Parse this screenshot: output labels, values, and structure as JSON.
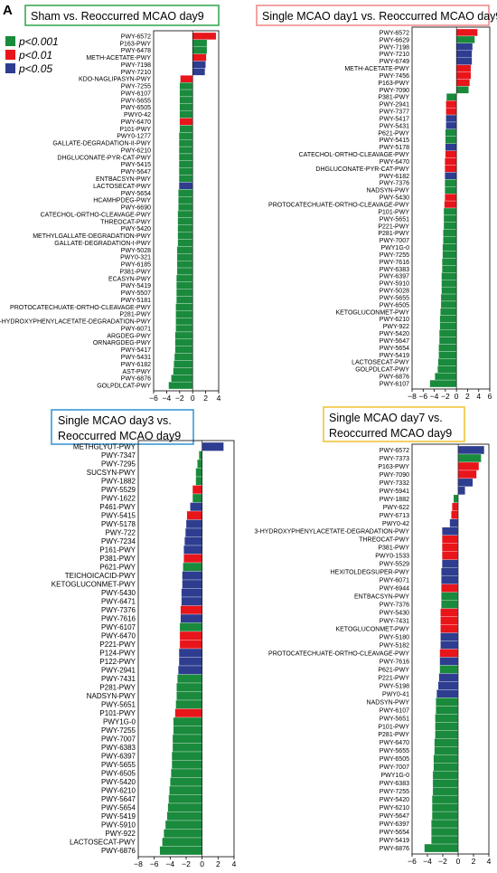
{
  "figure": {
    "panel_letter": "A",
    "legend": [
      {
        "label": "p<0.001",
        "color": "#1a8a3c"
      },
      {
        "label": "p<0.01",
        "color": "#e8151b"
      },
      {
        "label": "p<0.05",
        "color": "#2e3d8f"
      }
    ]
  },
  "chart_data": [
    {
      "type": "bar",
      "orientation": "horizontal",
      "title": "Sham vs. Reoccurred MCAO day9",
      "title_border_color": "#3aaa55",
      "xlim": [
        -6,
        4
      ],
      "xticks": [
        -6,
        -4,
        -2,
        0,
        2,
        4
      ],
      "categories": [
        "PWY-6572",
        "P163-PWY",
        "PWY-6478",
        "METH-ACETATE-PWY",
        "PWY-7198",
        "PWY-7210",
        "KDO-NAGLIPASYN-PWY",
        "PWY-7255",
        "PWY-6107",
        "PWY-5655",
        "PWY-6505",
        "PWY0-42",
        "PWY-6470",
        "P101-PWY",
        "PWY0-1277",
        "GALLATE-DEGRADATION-II-PWY",
        "PWY-6210",
        "DHGLUCONATE-PYR-CAT-PWY",
        "PWY-5415",
        "PWY-5647",
        "ENTBACSYN-PWY",
        "LACTOSECAT-PWY",
        "PWY-5654",
        "HCAMHPDEG-PWY",
        "PWY-6690",
        "CATECHOL-ORTHO-CLEAVAGE-PWY",
        "THREOCAT-PWY",
        "PWY-5420",
        "METHYLGALLATE-DEGRADATION-PWY",
        "GALLATE-DEGRADATION-I-PWY",
        "PWY-5028",
        "PWY0-321",
        "PWY-6185",
        "P381-PWY",
        "ECASYN-PWY",
        "PWY-5419",
        "PWY-5507",
        "PWY-5181",
        "PROTOCATECHUATE-ORTHO-CLEAVAGE-PWY",
        "P281-PWY",
        "3-HYDROXYPHENYLACETATE-DEGRADATION-PWY",
        "PWY-6071",
        "ARGDEG-PWY",
        "ORNARGDEG-PWY",
        "PWY-5417",
        "PWY-5431",
        "PWY-6182",
        "AST-PWY",
        "PWY-6876",
        "GOLPDLCAT-PWY"
      ],
      "values": [
        3.6,
        2.2,
        2.2,
        2.1,
        2.0,
        1.9,
        -1.9,
        -2.0,
        -2.0,
        -2.0,
        -2.0,
        -2.0,
        -2.0,
        -2.0,
        -2.1,
        -2.1,
        -2.1,
        -2.1,
        -2.1,
        -2.1,
        -2.1,
        -2.1,
        -2.2,
        -2.2,
        -2.2,
        -2.3,
        -2.3,
        -2.3,
        -2.3,
        -2.3,
        -2.4,
        -2.4,
        -2.4,
        -2.4,
        -2.5,
        -2.5,
        -2.5,
        -2.5,
        -2.6,
        -2.6,
        -2.6,
        -2.6,
        -2.7,
        -2.7,
        -2.7,
        -2.8,
        -2.9,
        -3.0,
        -3.3,
        -3.7
      ],
      "significance": [
        "p01",
        "p001",
        "p001",
        "p01",
        "p05",
        "p05",
        "p01",
        "p001",
        "p001",
        "p001",
        "p001",
        "p001",
        "p01",
        "p001",
        "p001",
        "p001",
        "p001",
        "p001",
        "p001",
        "p001",
        "p001",
        "p05",
        "p001",
        "p001",
        "p001",
        "p001",
        "p001",
        "p001",
        "p001",
        "p001",
        "p001",
        "p001",
        "p001",
        "p001",
        "p001",
        "p001",
        "p001",
        "p001",
        "p001",
        "p001",
        "p001",
        "p001",
        "p001",
        "p001",
        "p001",
        "p001",
        "p001",
        "p001",
        "p001",
        "p001"
      ]
    },
    {
      "type": "bar",
      "orientation": "horizontal",
      "title": "Single MCAO day1 vs. Reoccurred MCAO day9",
      "title_border_color": "#f08c8c",
      "xlim": [
        -8,
        6
      ],
      "xticks": [
        -8,
        -6,
        -4,
        -2,
        0,
        2,
        4,
        6
      ],
      "categories": [
        "PWY-6572",
        "PWY-6629",
        "PWY-7198",
        "PWY-7210",
        "PWY-6749",
        "METH-ACETATE-PWY",
        "PWY-7456",
        "P163-PWY",
        "PWY-7090",
        "P381-PWY",
        "PWY-2941",
        "PWY-7377",
        "PWY-5417",
        "PWY-5431",
        "P621-PWY",
        "PWY-5415",
        "PWY-5178",
        "CATECHOL-ORTHO-CLEAVAGE-PWY",
        "PWY-6470",
        "DHGLUCONATE-PYR-CAT-PWY",
        "PWY-6182",
        "PWY-7376",
        "NADSYN-PWY",
        "PWY-5430",
        "PROTOCATECHUATE-ORTHO-CLEAVAGE-PWY",
        "P101-PWY",
        "PWY-5651",
        "P221-PWY",
        "P281-PWY",
        "PWY-7007",
        "PWY1G-0",
        "PWY-7255",
        "PWY-7616",
        "PWY-6383",
        "PWY-6397",
        "PWY-5910",
        "PWY-5028",
        "PWY-5655",
        "PWY-6505",
        "KETOGLUCONMET-PWY",
        "PWY-6210",
        "PWY-922",
        "PWY-5420",
        "PWY-5647",
        "PWY-5654",
        "PWY-5419",
        "LACTOSECAT-PWY",
        "GOLPDLCAT-PWY",
        "PWY-6876",
        "PWY-6107"
      ],
      "values": [
        3.8,
        3.3,
        2.9,
        2.8,
        2.8,
        2.6,
        2.6,
        2.4,
        2.2,
        -1.8,
        -1.9,
        -1.9,
        -1.9,
        -1.9,
        -2.0,
        -2.0,
        -2.0,
        -2.0,
        -2.1,
        -2.1,
        -2.1,
        -2.1,
        -2.1,
        -2.1,
        -2.2,
        -2.3,
        -2.3,
        -2.3,
        -2.4,
        -2.4,
        -2.5,
        -2.5,
        -2.6,
        -2.6,
        -2.7,
        -2.7,
        -2.7,
        -2.8,
        -2.8,
        -2.9,
        -3.0,
        -3.0,
        -3.1,
        -3.1,
        -3.2,
        -3.2,
        -3.3,
        -3.4,
        -3.9,
        -4.8
      ],
      "significance": [
        "p01",
        "p001",
        "p05",
        "p05",
        "p05",
        "p01",
        "p01",
        "p01",
        "p001",
        "p001",
        "p01",
        "p01",
        "p05",
        "p05",
        "p001",
        "p001",
        "p05",
        "p01",
        "p01",
        "p01",
        "p05",
        "p001",
        "p001",
        "p01",
        "p01",
        "p001",
        "p001",
        "p001",
        "p001",
        "p001",
        "p001",
        "p001",
        "p001",
        "p001",
        "p001",
        "p001",
        "p001",
        "p001",
        "p001",
        "p001",
        "p001",
        "p001",
        "p001",
        "p001",
        "p001",
        "p001",
        "p001",
        "p001",
        "p001",
        "p001"
      ]
    },
    {
      "type": "bar",
      "orientation": "horizontal",
      "title": "Single MCAO day3 vs. Reoccurred MCAO day9",
      "title_lines": [
        "Single MCAO day3 vs.",
        "Reoccurred  MCAO day9"
      ],
      "title_border_color": "#3a9ad6",
      "xlim": [
        -8,
        4
      ],
      "xticks": [
        -8,
        -6,
        -4,
        -2,
        0,
        2,
        4
      ],
      "categories": [
        "METHGLYUT-PWY",
        "PWY-7347",
        "PWY-7295",
        "SUCSYN-PWY",
        "PWY-1882",
        "PWY-5529",
        "PWY-1622",
        "P461-PWY",
        "PWY-5415",
        "PWY-5178",
        "PWY-722",
        "PWY-7234",
        "P161-PWY",
        "P381-PWY",
        "P621-PWY",
        "TEICHOICACID-PWY",
        "KETOGLUCONMET-PWY",
        "PWY-5430",
        "PWY-6471",
        "PWY-7376",
        "PWY-7616",
        "PWY-6107",
        "PWY-6470",
        "P221-PWY",
        "P124-PWY",
        "P122-PWY",
        "PWY-2941",
        "PWY-7431",
        "P281-PWY",
        "NADSYN-PWY",
        "PWY-5651",
        "P101-PWY",
        "PWY1G-0",
        "PWY-7255",
        "PWY-7007",
        "PWY-6383",
        "PWY-6397",
        "PWY-5655",
        "PWY-6505",
        "PWY-5420",
        "PWY-6210",
        "PWY-5647",
        "PWY-5654",
        "PWY-5419",
        "PWY-5910",
        "PWY-922",
        "LACTOSECAT-PWY",
        "PWY-6876"
      ],
      "values": [
        2.7,
        -0.4,
        -0.6,
        -0.8,
        -0.8,
        -1.2,
        -1.2,
        -1.5,
        -1.9,
        -2.0,
        -2.1,
        -2.2,
        -2.3,
        -2.3,
        -2.4,
        -2.5,
        -2.5,
        -2.6,
        -2.6,
        -2.7,
        -2.7,
        -2.8,
        -2.8,
        -2.8,
        -2.9,
        -2.9,
        -3.0,
        -3.1,
        -3.2,
        -3.2,
        -3.3,
        -3.4,
        -3.6,
        -3.6,
        -3.7,
        -3.7,
        -3.8,
        -3.8,
        -3.9,
        -4.0,
        -4.1,
        -4.2,
        -4.3,
        -4.4,
        -4.6,
        -4.8,
        -5.0,
        -5.3
      ],
      "significance": [
        "p05",
        "p001",
        "p001",
        "p001",
        "p001",
        "p01",
        "p001",
        "p05",
        "p01",
        "p05",
        "p05",
        "p05",
        "p05",
        "p01",
        "p001",
        "p05",
        "p05",
        "p05",
        "p05",
        "p01",
        "p05",
        "p001",
        "p01",
        "p01",
        "p05",
        "p05",
        "p05",
        "p001",
        "p001",
        "p001",
        "p001",
        "p01",
        "p001",
        "p001",
        "p001",
        "p001",
        "p001",
        "p001",
        "p001",
        "p001",
        "p001",
        "p001",
        "p001",
        "p001",
        "p001",
        "p001",
        "p001",
        "p001"
      ]
    },
    {
      "type": "bar",
      "orientation": "horizontal",
      "title": "Single MCAO day7 vs. Reoccurred MCAO day9",
      "title_lines": [
        "Single MCAO day7 vs.",
        "Reoccurred  MCAO day9"
      ],
      "title_border_color": "#f2c53a",
      "xlim": [
        -6,
        4
      ],
      "xticks": [
        -6,
        -4,
        -2,
        0,
        2,
        4
      ],
      "categories": [
        "PWY-6572",
        "PWY-7373",
        "P163-PWY",
        "PWY-7090",
        "PWY-7332",
        "PWY-5941",
        "PWY-1882",
        "PWY-622",
        "PWY-6713",
        "PWY0-42",
        "3-HYDROXYPHENYLACETATE-DEGRADATION-PWY",
        "THREOCAT-PWY",
        "P381-PWY",
        "PWY0-1533",
        "PWY-5529",
        "HEXITOLDEGSUPER-PWY",
        "PWY-6071",
        "PWY-6944",
        "ENTBACSYN-PWY",
        "PWY-7376",
        "PWY-5430",
        "PWY-7431",
        "KETOGLUCONMET-PWY",
        "PWY-5180",
        "PWY-5182",
        "PROTOCATECHUATE-ORTHO-CLEAVAGE-PWY",
        "PWY-7616",
        "P621-PWY",
        "P221-PWY",
        "PWY-5198",
        "PWY0-41",
        "NADSYN-PWY",
        "PWY-6107",
        "PWY-5651",
        "P101-PWY",
        "P281-PWY",
        "PWY-6470",
        "PWY-5655",
        "PWY-6505",
        "PWY-7007",
        "PWY1G-0",
        "PWY-6383",
        "PWY-7255",
        "PWY-5420",
        "PWY-6210",
        "PWY-5647",
        "PWY-6397",
        "PWY-5654",
        "PWY-5419",
        "PWY-6876"
      ],
      "values": [
        3.4,
        3.0,
        2.7,
        2.4,
        1.9,
        0.9,
        -0.6,
        -0.8,
        -0.9,
        -1.1,
        -2.1,
        -2.1,
        -2.1,
        -2.1,
        -2.1,
        -2.2,
        -2.2,
        -2.2,
        -2.2,
        -2.2,
        -2.3,
        -2.3,
        -2.3,
        -2.3,
        -2.3,
        -2.4,
        -2.4,
        -2.4,
        -2.5,
        -2.6,
        -2.8,
        -2.9,
        -2.9,
        -3.0,
        -3.0,
        -3.0,
        -3.1,
        -3.1,
        -3.2,
        -3.2,
        -3.3,
        -3.3,
        -3.3,
        -3.4,
        -3.4,
        -3.4,
        -3.5,
        -3.5,
        -3.5,
        -4.4
      ],
      "significance": [
        "p05",
        "p001",
        "p01",
        "p01",
        "p05",
        "p05",
        "p001",
        "p01",
        "p01",
        "p05",
        "p05",
        "p01",
        "p01",
        "p01",
        "p05",
        "p05",
        "p05",
        "p01",
        "p001",
        "p001",
        "p01",
        "p01",
        "p01",
        "p05",
        "p05",
        "p01",
        "p05",
        "p001",
        "p05",
        "p05",
        "p05",
        "p001",
        "p001",
        "p001",
        "p001",
        "p001",
        "p001",
        "p001",
        "p001",
        "p001",
        "p001",
        "p001",
        "p001",
        "p001",
        "p001",
        "p001",
        "p001",
        "p001",
        "p001",
        "p001"
      ]
    }
  ]
}
